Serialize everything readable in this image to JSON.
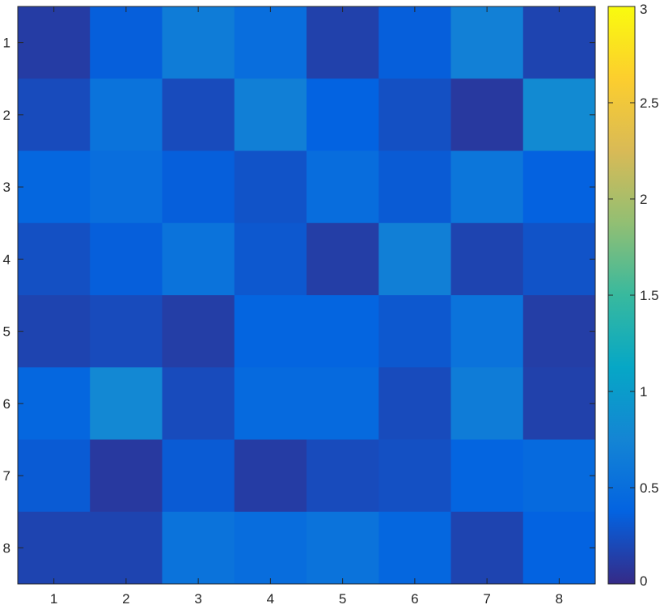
{
  "chart_data": {
    "type": "heatmap",
    "title": "",
    "xlabel": "",
    "ylabel": "",
    "x_ticks": [
      "1",
      "2",
      "3",
      "4",
      "5",
      "6",
      "7",
      "8"
    ],
    "y_ticks": [
      "1",
      "2",
      "3",
      "4",
      "5",
      "6",
      "7",
      "8"
    ],
    "values": [
      [
        0.12,
        0.35,
        0.65,
        0.5,
        0.15,
        0.35,
        0.7,
        0.17
      ],
      [
        0.22,
        0.55,
        0.22,
        0.68,
        0.38,
        0.25,
        0.1,
        0.8
      ],
      [
        0.42,
        0.5,
        0.35,
        0.27,
        0.48,
        0.32,
        0.58,
        0.37
      ],
      [
        0.25,
        0.35,
        0.55,
        0.3,
        0.13,
        0.68,
        0.17,
        0.27
      ],
      [
        0.17,
        0.22,
        0.13,
        0.4,
        0.4,
        0.3,
        0.55,
        0.13
      ],
      [
        0.42,
        0.78,
        0.22,
        0.45,
        0.45,
        0.22,
        0.65,
        0.15
      ],
      [
        0.32,
        0.1,
        0.32,
        0.12,
        0.22,
        0.25,
        0.4,
        0.45
      ],
      [
        0.17,
        0.17,
        0.55,
        0.48,
        0.55,
        0.42,
        0.17,
        0.38
      ]
    ],
    "colormap": "parula",
    "clim": [
      0,
      3
    ],
    "colorbar": {
      "ticks": [
        0,
        0.5,
        1,
        1.5,
        2,
        2.5,
        3
      ],
      "tick_labels": [
        "0",
        "0.5",
        "1",
        "1.5",
        "2",
        "2.5",
        "3"
      ],
      "placement": "right"
    },
    "grid": false
  }
}
